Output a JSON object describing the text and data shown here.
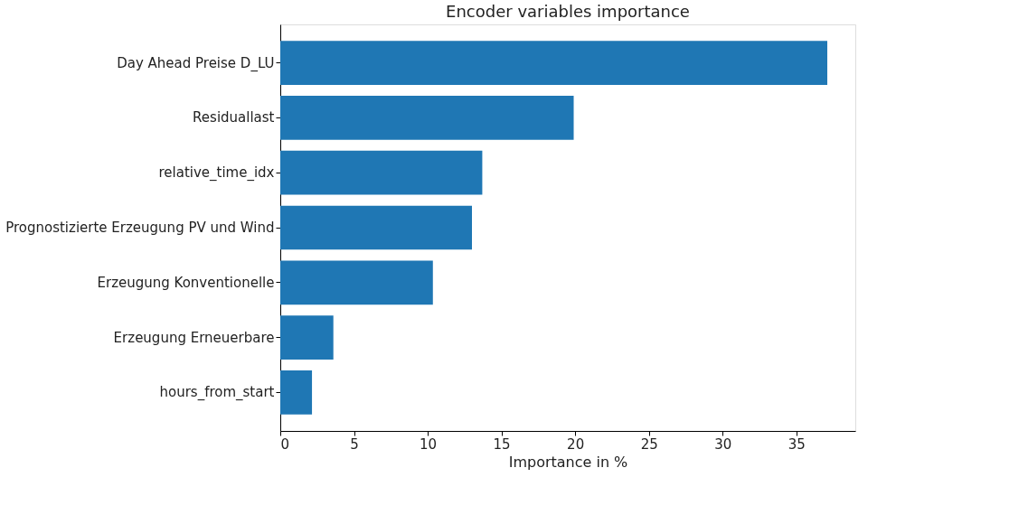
{
  "chart_data": {
    "type": "bar",
    "orientation": "horizontal",
    "title": "Encoder variables importance",
    "xlabel": "Importance in %",
    "categories": [
      "Day Ahead Preise D_LU",
      "Residuallast",
      "relative_time_idx",
      "Prognostizierte Erzeugung PV und Wind",
      "Erzeugung Konventionelle",
      "Erzeugung Erneuerbare",
      "hours_from_start"
    ],
    "values": [
      37.1,
      19.9,
      13.7,
      13.0,
      10.35,
      3.6,
      2.15
    ],
    "color": "#1f77b4",
    "xlim": [
      0,
      39
    ],
    "xticks": [
      0,
      5,
      10,
      15,
      20,
      25,
      30,
      35
    ],
    "grid": false
  }
}
